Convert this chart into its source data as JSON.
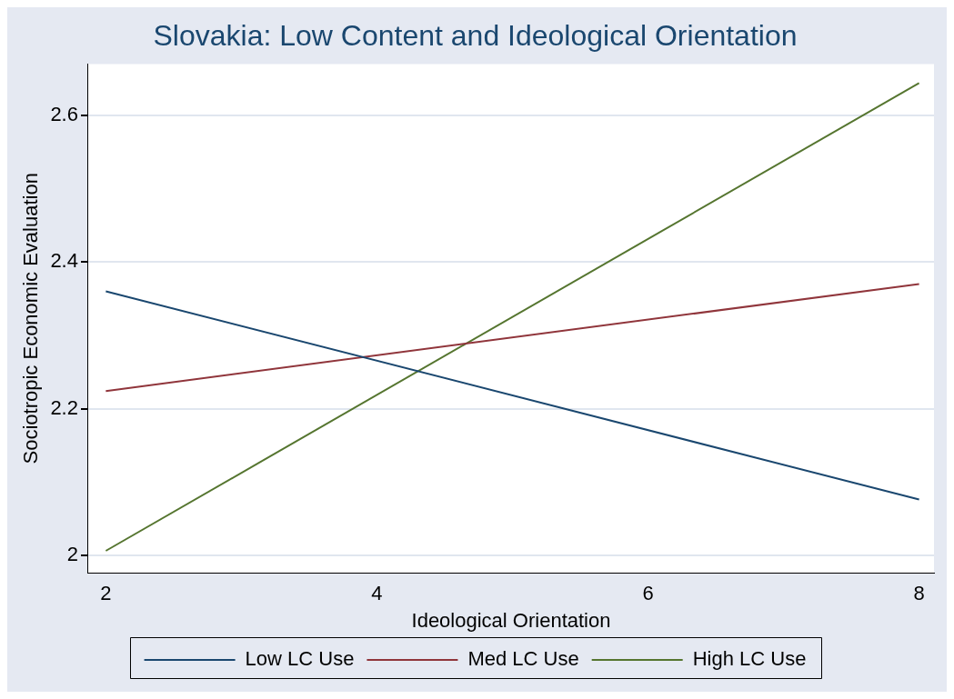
{
  "chart_data": {
    "type": "line",
    "title": "Slovakia: Low Content and Ideological Orientation",
    "xlabel": "Ideological Orientation",
    "ylabel": "Sociotropic Economic Evaluation",
    "x": [
      2,
      8
    ],
    "series": [
      {
        "name": "Low LC Use",
        "color": "#1a476f",
        "values": [
          2.36,
          2.076
        ]
      },
      {
        "name": "Med LC Use",
        "color": "#90353b",
        "values": [
          2.224,
          2.37
        ]
      },
      {
        "name": "High LC Use",
        "color": "#55752f",
        "values": [
          2.006,
          2.644
        ]
      }
    ],
    "xlim": [
      1.87,
      8.11
    ],
    "xticks": [
      2,
      4,
      6,
      8
    ],
    "ylim": [
      1.976,
      2.67
    ],
    "yticks": [
      2,
      2.2,
      2.4,
      2.6
    ],
    "grid": "y",
    "legend": "bottom",
    "marker": "none",
    "line_style": "solid"
  }
}
